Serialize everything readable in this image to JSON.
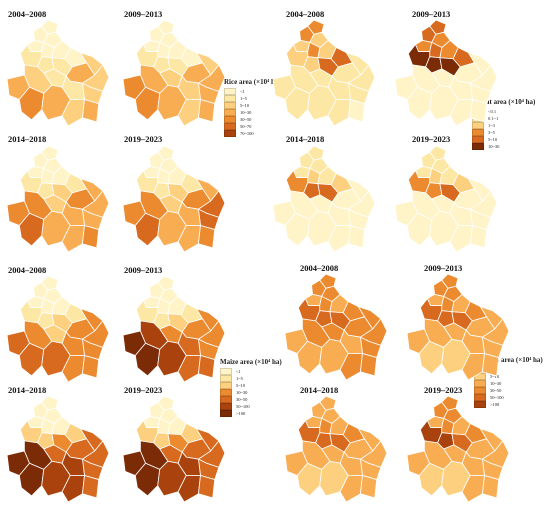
{
  "periods": [
    "2004–2008",
    "2009–2013",
    "2014–2018",
    "2019–2023"
  ],
  "palette": [
    "#fff3c8",
    "#fde7a4",
    "#fdd07f",
    "#f8ad53",
    "#ec8a2f",
    "#d86a1f",
    "#a9420d",
    "#7c2b07"
  ],
  "crops": [
    {
      "id": "rice",
      "legend_title": "Rice area (×10⁴ ha)",
      "legend_items": [
        "<1",
        "1~5",
        "5~10",
        "10~30",
        "30~50",
        "50~70",
        "70~100"
      ],
      "panels": [
        {
          "period": "2004–2008",
          "district_classes": [
            0,
            0,
            0,
            0,
            0,
            0,
            1,
            1,
            1,
            0,
            2,
            3,
            2,
            2,
            1,
            1,
            2,
            3,
            4,
            3,
            2,
            3
          ]
        },
        {
          "period": "2009–2013",
          "district_classes": [
            0,
            0,
            0,
            0,
            0,
            0,
            1,
            1,
            1,
            0,
            2,
            3,
            3,
            3,
            2,
            2,
            3,
            4,
            4,
            3,
            2,
            3
          ]
        },
        {
          "period": "2014–2018",
          "district_classes": [
            0,
            0,
            0,
            0,
            0,
            0,
            1,
            1,
            2,
            1,
            3,
            4,
            3,
            3,
            3,
            2,
            4,
            4,
            5,
            3,
            3,
            4
          ]
        },
        {
          "period": "2019–2023",
          "district_classes": [
            0,
            0,
            0,
            0,
            0,
            0,
            1,
            1,
            2,
            1,
            3,
            4,
            5,
            5,
            3,
            2,
            4,
            4,
            5,
            3,
            3,
            4
          ]
        }
      ]
    },
    {
      "id": "wheat",
      "legend_title": "Wheat area (×10⁴ ha)",
      "legend_items": [
        "<0.1",
        "0.1~1",
        "1~3",
        "3~5",
        "5~10",
        "10~30"
      ],
      "panels": [
        {
          "period": "2004–2008",
          "district_classes": [
            3,
            3,
            2,
            2,
            3,
            2,
            2,
            2,
            4,
            4,
            1,
            1,
            1,
            1,
            1,
            1,
            1,
            1,
            1,
            1,
            1,
            0
          ]
        },
        {
          "period": "2009–2013",
          "district_classes": [
            4,
            4,
            3,
            3,
            4,
            3,
            5,
            5,
            5,
            4,
            0,
            0,
            0,
            0,
            0,
            0,
            0,
            0,
            0,
            0,
            0,
            0
          ]
        },
        {
          "period": "2014–2018",
          "district_classes": [
            1,
            1,
            1,
            1,
            2,
            1,
            3,
            4,
            4,
            2,
            0,
            0,
            0,
            0,
            0,
            0,
            0,
            0,
            0,
            0,
            0,
            0
          ]
        },
        {
          "period": "2019–2023",
          "district_classes": [
            1,
            1,
            1,
            1,
            2,
            1,
            3,
            3,
            4,
            2,
            0,
            0,
            0,
            0,
            0,
            0,
            0,
            0,
            0,
            0,
            0,
            0
          ]
        }
      ]
    },
    {
      "id": "maize",
      "legend_title": "Maize area (×10⁴ ha)",
      "legend_items": [
        "<1",
        "1~5",
        "5~10",
        "10~30",
        "30~50",
        "50~100",
        ">100"
      ],
      "panels": [
        {
          "period": "2004–2008",
          "district_classes": [
            0,
            0,
            0,
            0,
            0,
            0,
            1,
            1,
            2,
            1,
            3,
            3,
            3,
            3,
            3,
            2,
            3,
            4,
            4,
            4,
            3,
            3
          ]
        },
        {
          "period": "2009–2013",
          "district_classes": [
            0,
            0,
            0,
            0,
            0,
            0,
            1,
            1,
            2,
            1,
            3,
            3,
            3,
            3,
            4,
            3,
            5,
            6,
            6,
            5,
            4,
            4
          ]
        },
        {
          "period": "2014–2018",
          "district_classes": [
            0,
            0,
            0,
            0,
            0,
            0,
            2,
            2,
            3,
            2,
            4,
            4,
            4,
            4,
            5,
            4,
            6,
            6,
            6,
            5,
            5,
            4
          ]
        },
        {
          "period": "2019–2023",
          "district_classes": [
            0,
            0,
            0,
            0,
            0,
            0,
            2,
            2,
            3,
            2,
            4,
            4,
            4,
            4,
            5,
            4,
            6,
            6,
            6,
            5,
            5,
            4
          ]
        }
      ]
    },
    {
      "id": "soybean",
      "legend_title": "Soybean area (×10⁴ ha)",
      "legend_items": [
        "1~5",
        "5~10",
        "10~30",
        "30~50",
        "50~100",
        ">100"
      ],
      "panels": [
        {
          "period": "2004–2008",
          "district_classes": [
            3,
            3,
            3,
            2,
            3,
            2,
            4,
            4,
            4,
            3,
            3,
            3,
            3,
            3,
            2,
            3,
            3,
            2,
            2,
            2,
            3,
            3
          ]
        },
        {
          "period": "2009–2013",
          "district_classes": [
            3,
            3,
            3,
            2,
            3,
            2,
            4,
            4,
            4,
            3,
            2,
            2,
            2,
            2,
            2,
            2,
            2,
            2,
            1,
            1,
            2,
            2
          ]
        },
        {
          "period": "2014–2018",
          "district_classes": [
            2,
            2,
            2,
            2,
            3,
            2,
            4,
            4,
            4,
            3,
            2,
            2,
            2,
            2,
            2,
            2,
            2,
            2,
            1,
            1,
            2,
            2
          ]
        },
        {
          "period": "2019–2023",
          "district_classes": [
            3,
            3,
            3,
            2,
            3,
            2,
            5,
            5,
            4,
            3,
            2,
            2,
            2,
            2,
            2,
            2,
            2,
            2,
            1,
            1,
            2,
            2
          ]
        }
      ]
    }
  ]
}
